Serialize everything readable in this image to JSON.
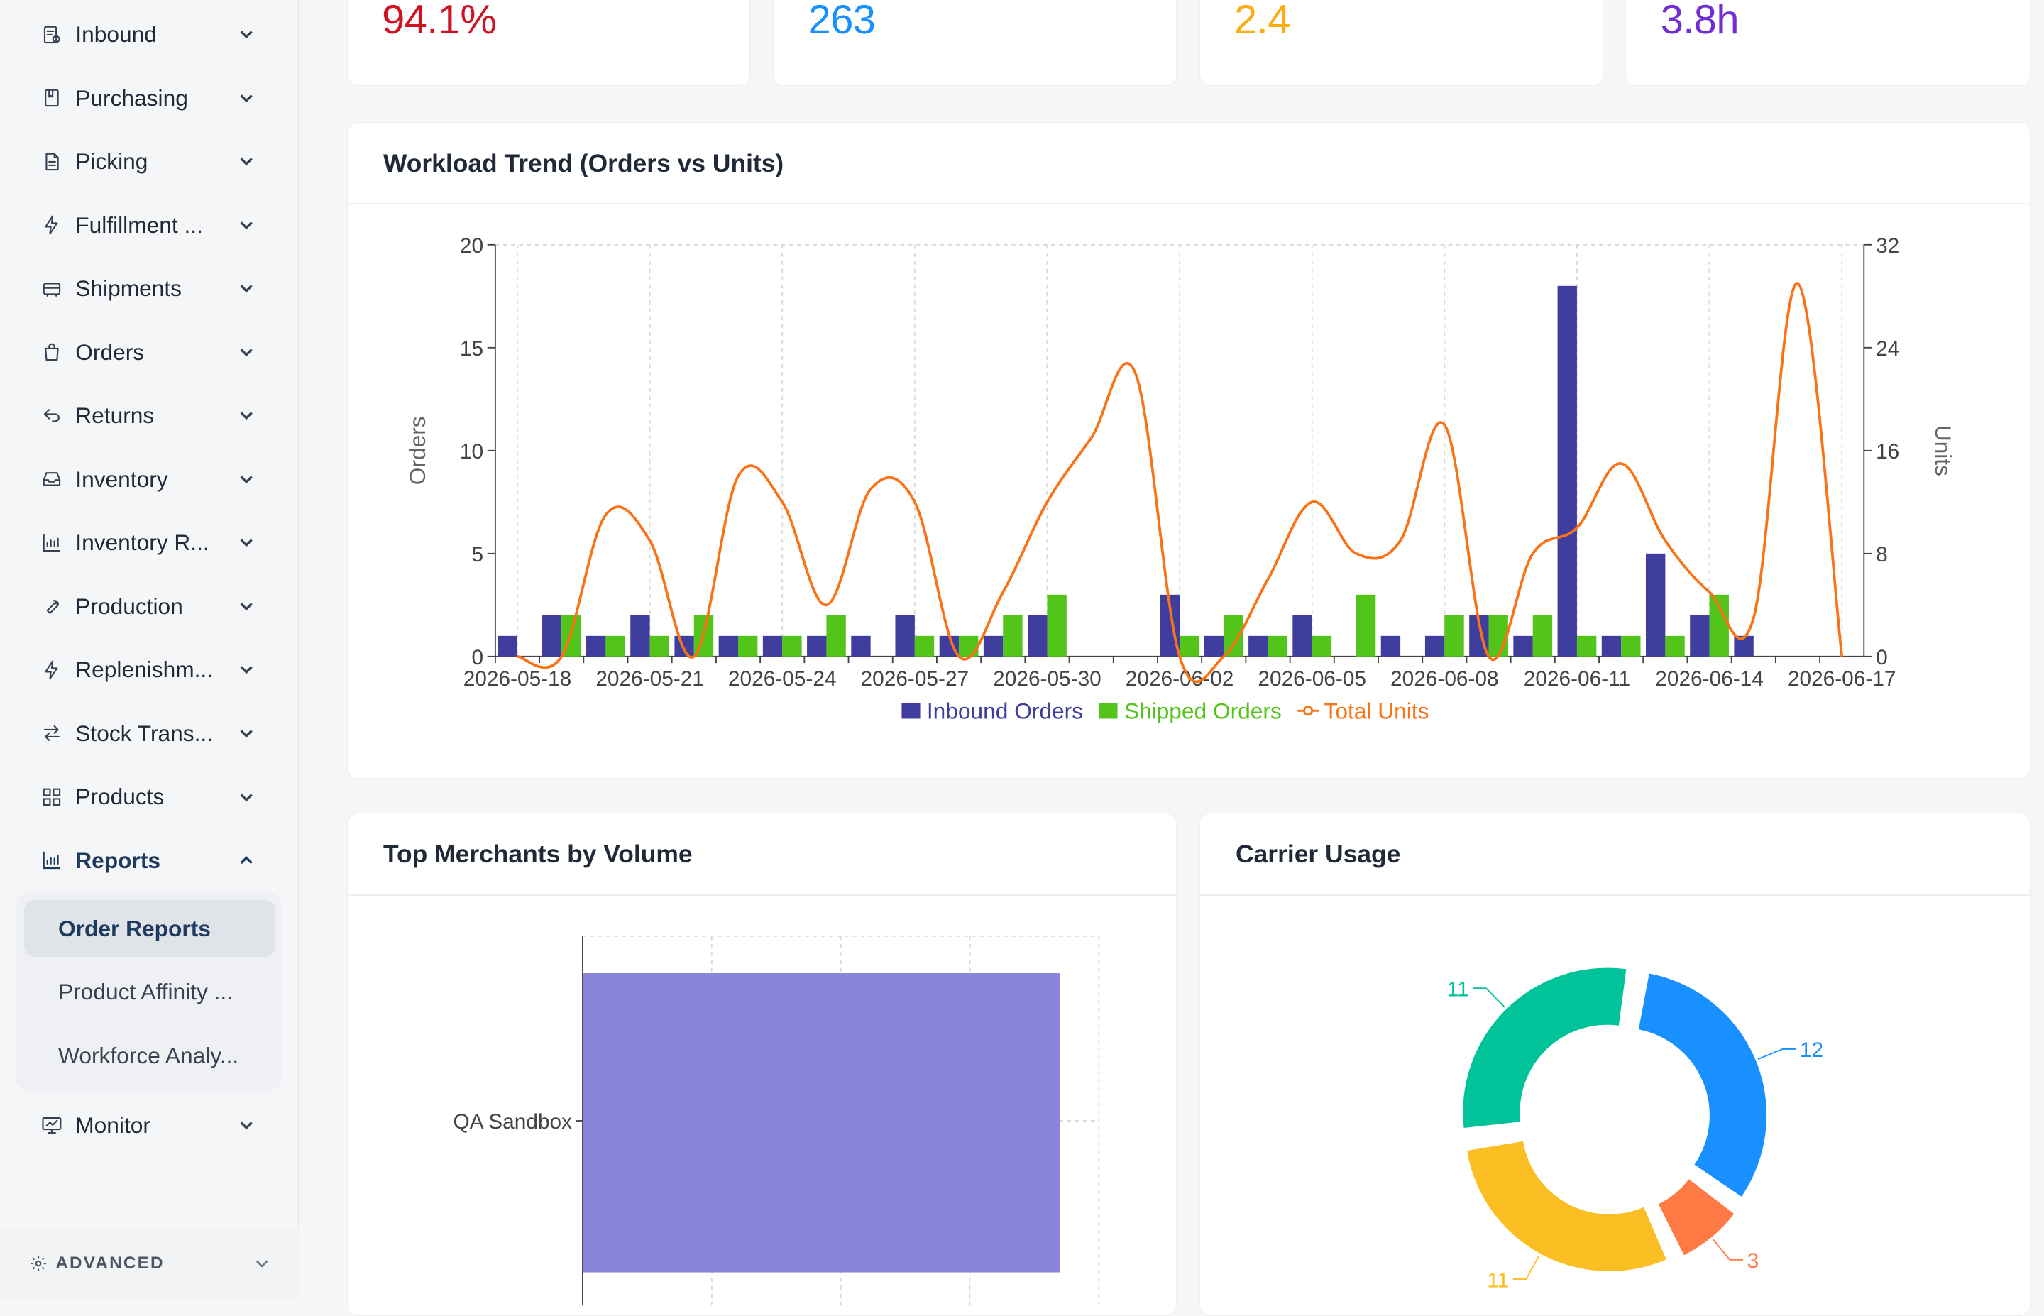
{
  "sidebar": {
    "items": [
      {
        "label": "Inbound",
        "icon": "inbound-doc-icon"
      },
      {
        "label": "Purchasing",
        "icon": "book-icon"
      },
      {
        "label": "Picking",
        "icon": "file-text-icon"
      },
      {
        "label": "Fulfillment ...",
        "icon": "lightning-icon"
      },
      {
        "label": "Shipments",
        "icon": "truck-icon"
      },
      {
        "label": "Orders",
        "icon": "shopping-bag-icon"
      },
      {
        "label": "Returns",
        "icon": "return-arrow-icon"
      },
      {
        "label": "Inventory",
        "icon": "inbox-icon"
      },
      {
        "label": "Inventory R...",
        "icon": "bar-chart-icon"
      },
      {
        "label": "Production",
        "icon": "wrench-icon"
      },
      {
        "label": "Replenishm...",
        "icon": "lightning-icon"
      },
      {
        "label": "Stock Trans...",
        "icon": "transfer-arrows-icon"
      },
      {
        "label": "Products",
        "icon": "grid-icon"
      },
      {
        "label": "Reports",
        "icon": "bar-chart-icon",
        "expanded": true
      },
      {
        "label": "Monitor",
        "icon": "monitor-chart-icon"
      }
    ],
    "reports_submenu": [
      {
        "label": "Order Reports",
        "active": true
      },
      {
        "label": "Product Affinity ..."
      },
      {
        "label": "Workforce Analy..."
      }
    ],
    "advanced_label": "ADVANCED"
  },
  "kpis": [
    {
      "value": "94.1%",
      "color": "#cf1322"
    },
    {
      "value": "263",
      "color": "#1890ff"
    },
    {
      "value": "2.4",
      "color": "#faad14"
    },
    {
      "value": "3.8h",
      "color": "#722ed1"
    }
  ],
  "workload": {
    "title": "Workload Trend (Orders vs Units)"
  },
  "merchants": {
    "title": "Top Merchants by Volume"
  },
  "carriers": {
    "title": "Carrier Usage"
  },
  "chart_data": [
    {
      "type": "bar",
      "title": "Workload Trend (Orders vs Units)",
      "combo": "bars + smooth line (secondary axis)",
      "x": [
        "2026-05-18",
        "2026-05-19",
        "2026-05-20",
        "2026-05-21",
        "2026-05-22",
        "2026-05-23",
        "2026-05-24",
        "2026-05-25",
        "2026-05-26",
        "2026-05-27",
        "2026-05-28",
        "2026-05-29",
        "2026-05-30",
        "2026-05-31",
        "2026-06-01",
        "2026-06-02",
        "2026-06-03",
        "2026-06-04",
        "2026-06-05",
        "2026-06-06",
        "2026-06-07",
        "2026-06-08",
        "2026-06-09",
        "2026-06-10",
        "2026-06-11",
        "2026-06-12",
        "2026-06-13",
        "2026-06-14",
        "2026-06-15",
        "2026-06-16",
        "2026-06-17"
      ],
      "x_tick_labels": [
        "2026-05-18",
        "2026-05-21",
        "2026-05-24",
        "2026-05-27",
        "2026-05-30",
        "2026-06-02",
        "2026-06-05",
        "2026-06-08",
        "2026-06-11",
        "2026-06-14",
        "2026-06-17"
      ],
      "ylabel": "Orders",
      "ylabel_right": "Units",
      "ylim": [
        0,
        20
      ],
      "yticks": [
        0,
        5,
        10,
        15,
        20
      ],
      "ylim_right": [
        0,
        32
      ],
      "yticks_right": [
        0,
        8,
        16,
        24,
        32
      ],
      "legend_position": "bottom-center",
      "grid": "vertical dashed",
      "series": [
        {
          "name": "Inbound Orders",
          "kind": "bar",
          "axis": "left",
          "color": "#3f3d9e",
          "values": [
            1,
            2,
            1,
            2,
            1,
            1,
            1,
            1,
            1,
            2,
            1,
            1,
            2,
            0,
            0,
            3,
            1,
            1,
            2,
            0,
            1,
            1,
            2,
            1,
            18,
            1,
            5,
            2,
            1,
            0,
            0
          ]
        },
        {
          "name": "Shipped Orders",
          "kind": "bar",
          "axis": "left",
          "color": "#52c41a",
          "values": [
            0,
            2,
            1,
            1,
            2,
            1,
            1,
            2,
            0,
            1,
            1,
            2,
            3,
            0,
            0,
            1,
            2,
            1,
            1,
            3,
            0,
            2,
            2,
            2,
            1,
            1,
            1,
            3,
            0,
            0,
            0
          ]
        },
        {
          "name": "Total Units",
          "kind": "line",
          "axis": "right",
          "color": "#f97316",
          "values": [
            0,
            0,
            11,
            9,
            0,
            14,
            12,
            4,
            13,
            12,
            0,
            5,
            12,
            17,
            22,
            0,
            0,
            6,
            12,
            8,
            9,
            18,
            0,
            8,
            10,
            15,
            9,
            5,
            3,
            29,
            0
          ]
        }
      ]
    },
    {
      "type": "bar",
      "orientation": "horizontal",
      "title": "Top Merchants by Volume",
      "categories": [
        "QA Sandbox"
      ],
      "values": [
        100
      ],
      "grid": "dashed",
      "bar_color": "#8a84da"
    },
    {
      "type": "pie",
      "variant": "donut",
      "title": "Carrier Usage",
      "values": [
        12,
        3,
        11,
        11
      ],
      "colors": [
        "#1890ff",
        "#ff7a45",
        "#fbbf24",
        "#00c39a"
      ],
      "data_labels": [
        "12",
        "3",
        "11",
        "11"
      ]
    }
  ]
}
